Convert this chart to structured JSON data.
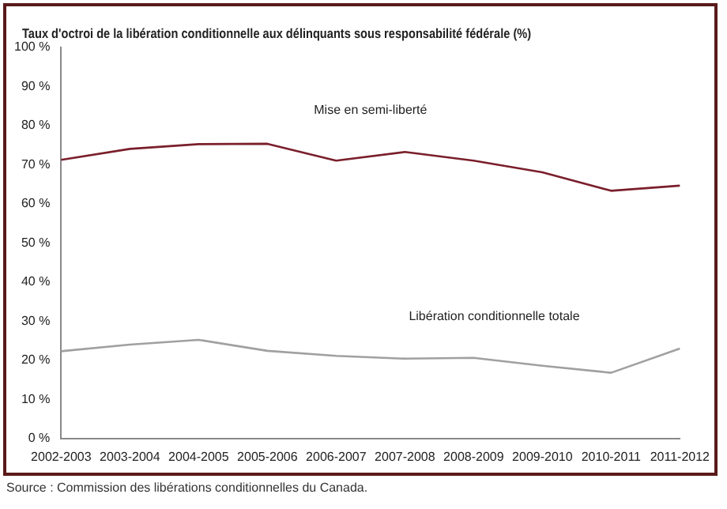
{
  "chart_data": {
    "type": "line",
    "title": "Taux d'octroi de la libération conditionnelle aux délinquants sous responsabilité fédérale (%)",
    "categories": [
      "2002-2003",
      "2003-2004",
      "2004-2005",
      "2005-2006",
      "2006-2007",
      "2007-2008",
      "2008-2009",
      "2009-2010",
      "2010-2011",
      "2011-2012"
    ],
    "series": [
      {
        "name": "Mise en semi-liberté",
        "color": "#7a1f2b",
        "values": [
          71.2,
          74,
          75.2,
          75.3,
          71,
          73.2,
          71,
          68,
          63.3,
          64.6
        ]
      },
      {
        "name": "Libération conditionnelle totale",
        "color": "#a0a0a0",
        "values": [
          22.3,
          24,
          25.2,
          22.4,
          21.1,
          20.4,
          20.6,
          18.6,
          16.8,
          23
        ]
      }
    ],
    "ylim": [
      0,
      100
    ],
    "yticks": [
      {
        "value": 0,
        "label": "0 %"
      },
      {
        "value": 10,
        "label": "10 %"
      },
      {
        "value": 20,
        "label": "20 %"
      },
      {
        "value": 30,
        "label": "30 %"
      },
      {
        "value": 40,
        "label": "40 %"
      },
      {
        "value": 50,
        "label": "50 %"
      },
      {
        "value": 60,
        "label": "60 %"
      },
      {
        "value": 70,
        "label": "70 %"
      },
      {
        "value": 80,
        "label": "80 %"
      },
      {
        "value": 90,
        "label": "90 %"
      },
      {
        "value": 100,
        "label": "100 %"
      }
    ],
    "grid": false,
    "legend": false,
    "marker": "none",
    "line_style": "solid",
    "annotations": [
      "Source : Commission des libérations conditionnelles du Canada."
    ]
  }
}
